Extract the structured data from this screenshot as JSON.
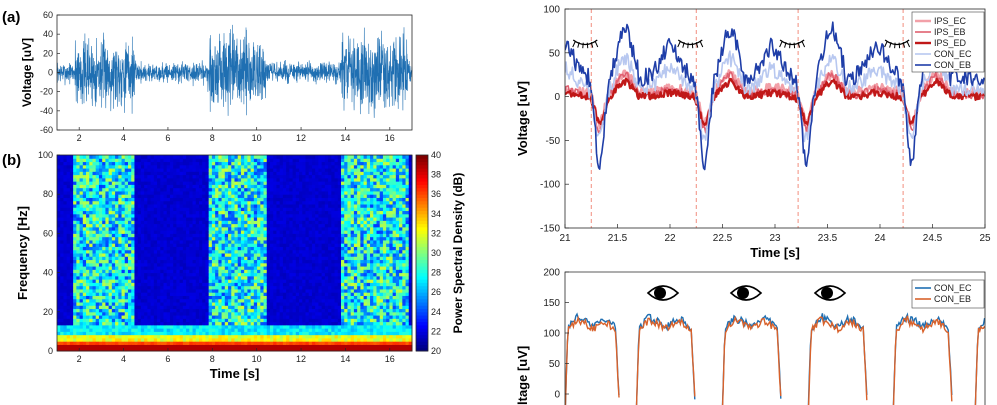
{
  "panels": {
    "a_label": "(a)",
    "b_label": "(b)"
  },
  "chart_data": [
    {
      "id": "a",
      "type": "line",
      "ylabel": "Voltage [uV]",
      "xlabel": "",
      "xlim": [
        1,
        17
      ],
      "ylim": [
        -60,
        60
      ],
      "xticks": [
        2,
        4,
        6,
        8,
        10,
        12,
        14,
        16
      ],
      "yticks": [
        -60,
        -40,
        -20,
        0,
        20,
        40,
        60
      ],
      "color": "#1f6fb2",
      "bursts": [
        [
          1.8,
          4.5,
          30
        ],
        [
          7.8,
          10.4,
          35
        ],
        [
          13.8,
          16.8,
          32
        ]
      ],
      "baseline_amplitude": 9
    },
    {
      "id": "b",
      "type": "heatmap",
      "ylabel": "Frequency [Hz]",
      "xlabel": "Time [s]",
      "xlim": [
        1,
        17
      ],
      "ylim": [
        0,
        100
      ],
      "xticks": [
        2,
        4,
        6,
        8,
        10,
        12,
        14,
        16
      ],
      "yticks": [
        0,
        20,
        40,
        60,
        80,
        100
      ],
      "colorbar": {
        "label": "Power Spectral Density (dB)",
        "range": [
          20,
          40
        ],
        "ticks": [
          20,
          22,
          24,
          26,
          28,
          30,
          32,
          34,
          36,
          38,
          40
        ]
      },
      "active_bands": [
        [
          1.8,
          4.5
        ],
        [
          7.8,
          10.4
        ],
        [
          13.8,
          16.8
        ]
      ]
    },
    {
      "id": "c",
      "type": "line",
      "xlabel": "Time [s]",
      "ylabel": "Voltage [uV]",
      "xlim": [
        21,
        25
      ],
      "ylim": [
        -150,
        100
      ],
      "xticks": [
        21,
        21.5,
        22,
        22.5,
        23,
        23.5,
        24,
        24.5,
        25
      ],
      "yticks": [
        -150,
        -100,
        -50,
        0,
        50,
        100
      ],
      "event_lines": [
        21.25,
        22.25,
        23.22,
        24.22
      ],
      "event_color": "#f08070",
      "icon": "closed-eye-icon",
      "legend": [
        "IPS_EC",
        "IPS_EB",
        "IPS_ED",
        "CON_EC",
        "CON_EB"
      ],
      "series": [
        {
          "name": "IPS_EC",
          "color": "#f2a0a8",
          "base": 5,
          "dip": -35,
          "noise": 6,
          "width": 2.5
        },
        {
          "name": "IPS_EB",
          "color": "#e06070",
          "base": 2,
          "dip": -40,
          "noise": 5,
          "width": 1.6
        },
        {
          "name": "IPS_ED",
          "color": "#c01818",
          "base": 0,
          "dip": -30,
          "noise": 4,
          "width": 2.4
        },
        {
          "name": "CON_EC",
          "color": "#b8c8f0",
          "base": 10,
          "dip": -60,
          "noise": 9,
          "width": 1.6
        },
        {
          "name": "CON_EB",
          "color": "#1f3ea8",
          "base": 22,
          "dip": -100,
          "noise": 10,
          "width": 1.6
        }
      ]
    },
    {
      "id": "d",
      "type": "line",
      "ylabel": "Voltage [uV]",
      "ylabel_visible": "ltage [uV]",
      "ylim": [
        0,
        200
      ],
      "yticks": [
        0,
        50,
        100,
        150,
        200
      ],
      "icon": "open-eye-icon",
      "legend": [
        "CON_EC",
        "CON_EB"
      ],
      "series": [
        {
          "name": "CON_EC",
          "color": "#1f6fb2"
        },
        {
          "name": "CON_EB",
          "color": "#d9622b"
        }
      ]
    }
  ]
}
